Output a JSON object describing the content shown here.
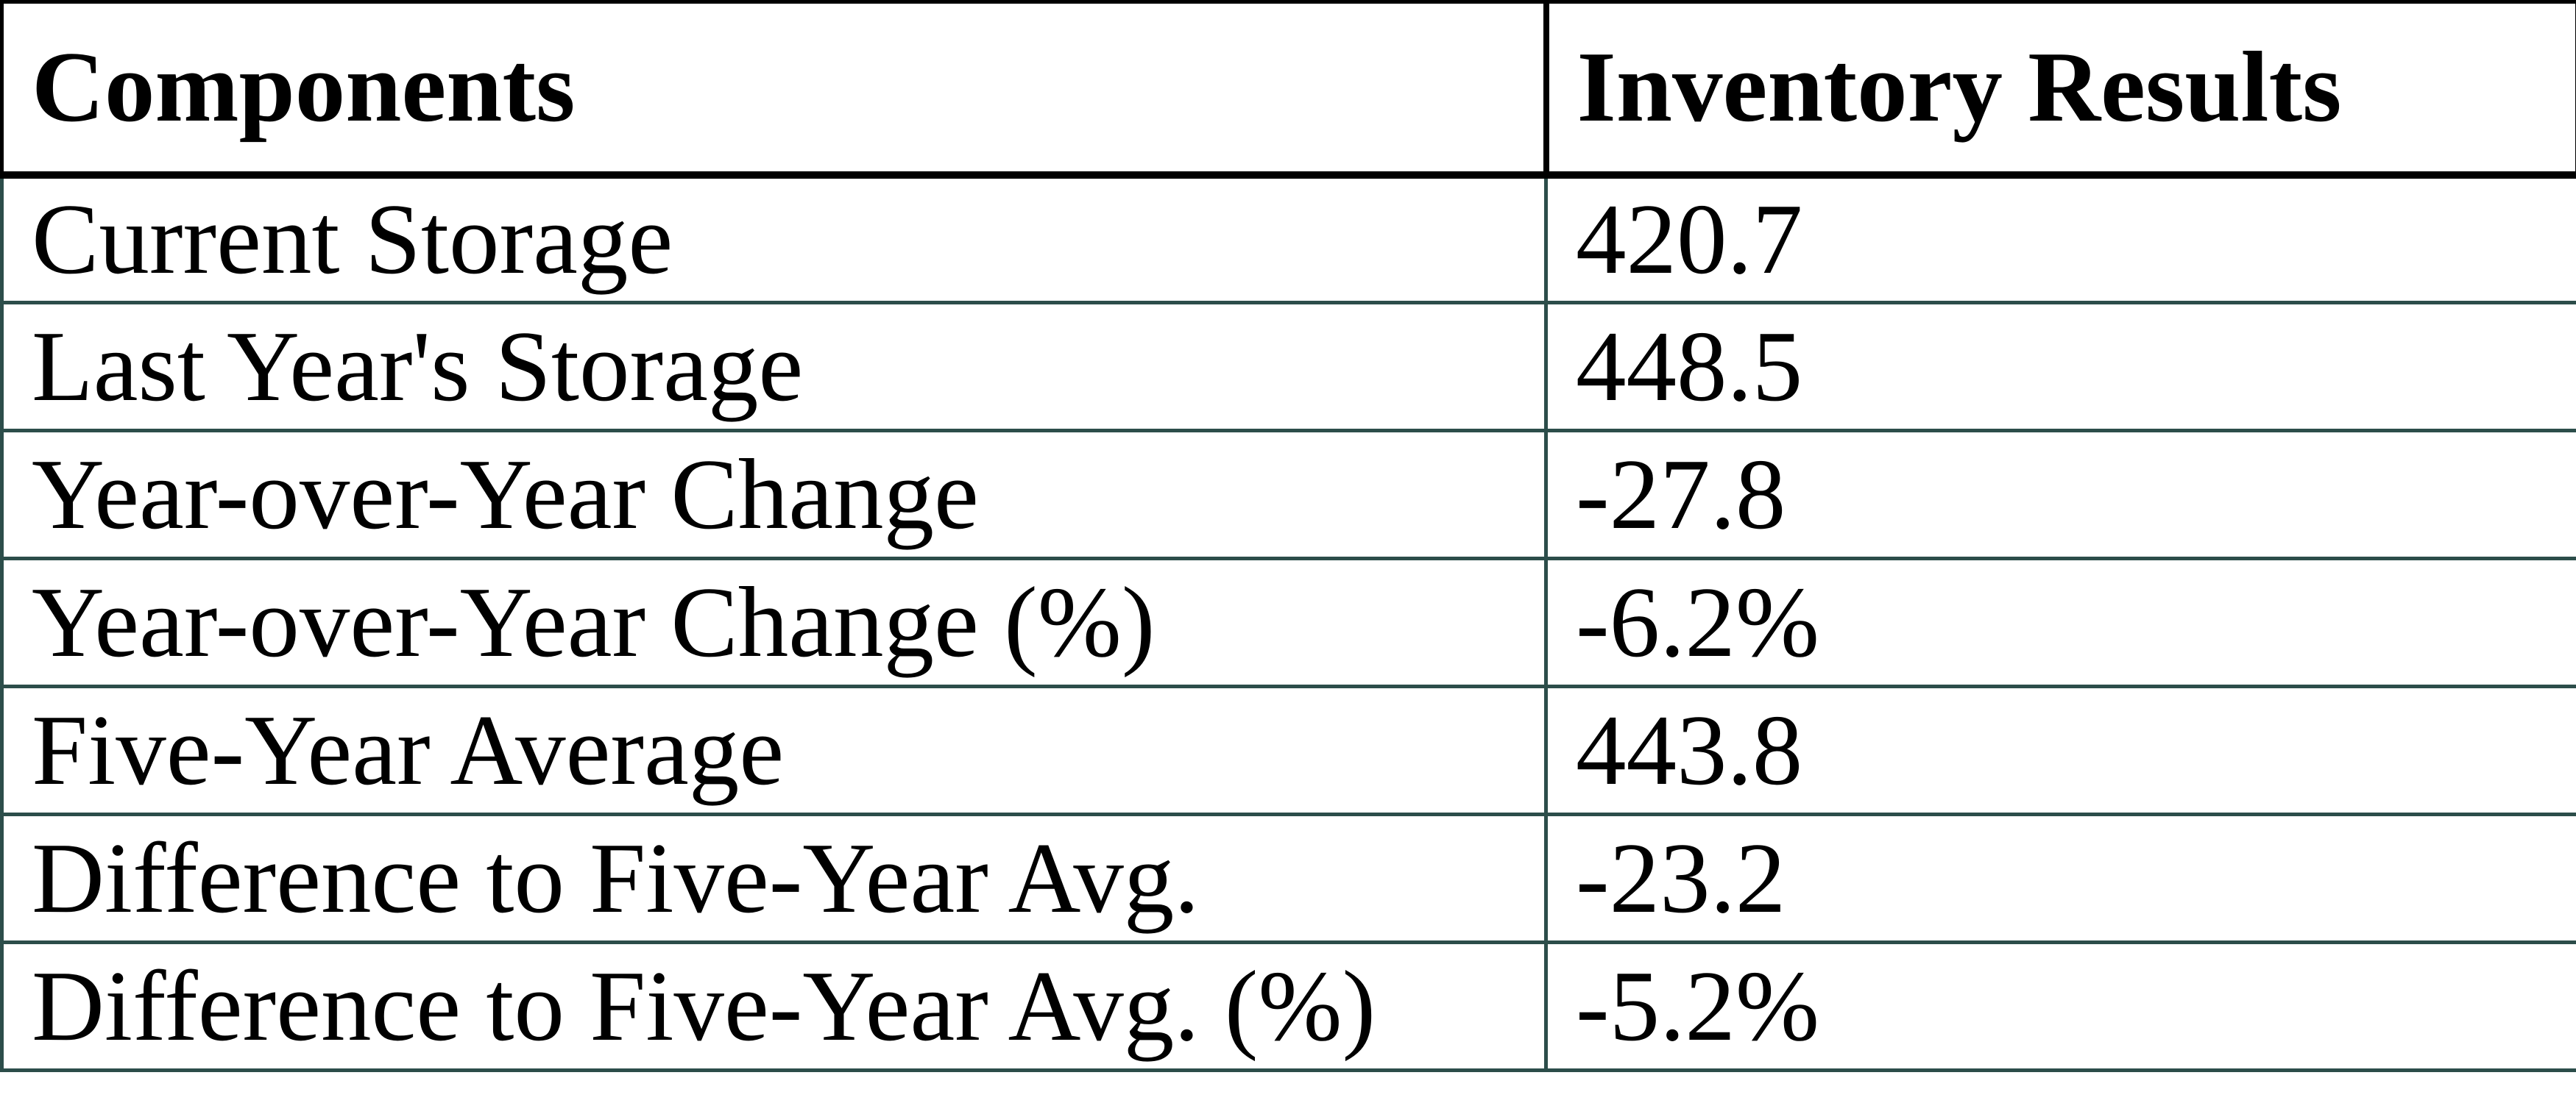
{
  "colors": {
    "background": "#FFFFFF",
    "text": "#000000",
    "header_border": "#000000",
    "body_border": "#2C4D4A"
  },
  "table": {
    "header": {
      "components": "Components",
      "inventory_results": "Inventory Results"
    },
    "rows": [
      {
        "component": "Current Storage",
        "result": "420.7"
      },
      {
        "component": "Last Year's Storage",
        "result": "448.5"
      },
      {
        "component": "Year-over-Year Change",
        "result": "-27.8"
      },
      {
        "component": "Year-over-Year Change (%)",
        "result": "-6.2%"
      },
      {
        "component": "Five-Year Average",
        "result": "443.8"
      },
      {
        "component": "Difference to Five-Year Avg.",
        "result": "-23.2"
      },
      {
        "component": "Difference to Five-Year Avg. (%)",
        "result": "-5.2%"
      }
    ]
  },
  "chart_data": {
    "type": "table",
    "title": "",
    "columns": [
      "Components",
      "Inventory Results"
    ],
    "rows": [
      [
        "Current Storage",
        "420.7"
      ],
      [
        "Last Year's Storage",
        "448.5"
      ],
      [
        "Year-over-Year Change",
        "-27.8"
      ],
      [
        "Year-over-Year Change (%)",
        "-6.2%"
      ],
      [
        "Five-Year Average",
        "443.8"
      ],
      [
        "Difference to Five-Year Avg.",
        "-23.2"
      ],
      [
        "Difference to Five-Year Avg. (%)",
        "-5.2%"
      ]
    ],
    "layout_hints": {
      "header_row_bold": true,
      "grid": true,
      "header_border_color": "#000000",
      "body_border_color": "#2C4D4A",
      "text_align": "left"
    }
  }
}
